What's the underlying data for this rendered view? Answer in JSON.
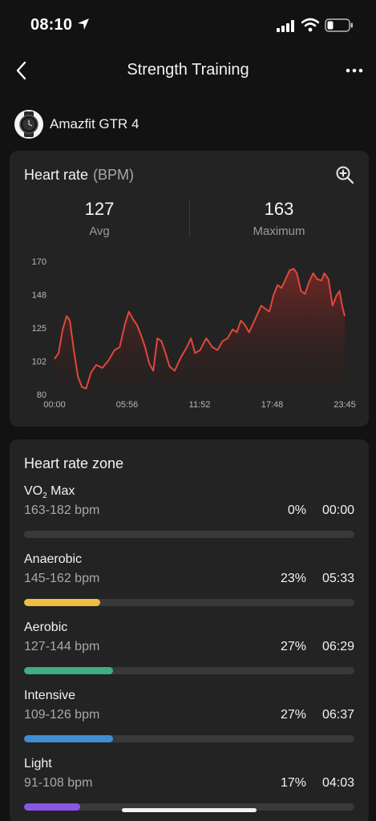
{
  "status_bar": {
    "time": "08:10"
  },
  "nav": {
    "title": "Strength Training"
  },
  "device": {
    "name": "Amazfit GTR 4"
  },
  "heart_rate": {
    "title": "Heart rate",
    "unit": "(BPM)",
    "avg_value": "127",
    "avg_label": "Avg",
    "max_value": "163",
    "max_label": "Maximum"
  },
  "chart_data": {
    "type": "area",
    "title": "",
    "xlabel": "",
    "ylabel": "",
    "ylim": [
      80,
      170
    ],
    "y_ticks": [
      "170",
      "148",
      "125",
      "102",
      "80"
    ],
    "x_ticks": [
      "00:00",
      "05:56",
      "11:52",
      "17:48",
      "23:45"
    ],
    "x_range_seconds": [
      0,
      1425
    ],
    "series": [
      {
        "color": "#e0473c",
        "points": [
          [
            0,
            104
          ],
          [
            20,
            108
          ],
          [
            40,
            124
          ],
          [
            60,
            133
          ],
          [
            75,
            130
          ],
          [
            95,
            110
          ],
          [
            115,
            92
          ],
          [
            135,
            85
          ],
          [
            155,
            84
          ],
          [
            180,
            95
          ],
          [
            205,
            100
          ],
          [
            235,
            98
          ],
          [
            265,
            103
          ],
          [
            295,
            110
          ],
          [
            320,
            112
          ],
          [
            345,
            127
          ],
          [
            365,
            136
          ],
          [
            385,
            131
          ],
          [
            405,
            127
          ],
          [
            425,
            120
          ],
          [
            445,
            112
          ],
          [
            465,
            101
          ],
          [
            485,
            96
          ],
          [
            505,
            118
          ],
          [
            525,
            116
          ],
          [
            545,
            108
          ],
          [
            565,
            99
          ],
          [
            590,
            96
          ],
          [
            620,
            105
          ],
          [
            650,
            112
          ],
          [
            670,
            118
          ],
          [
            690,
            108
          ],
          [
            715,
            110
          ],
          [
            745,
            118
          ],
          [
            775,
            112
          ],
          [
            800,
            110
          ],
          [
            825,
            116
          ],
          [
            850,
            118
          ],
          [
            875,
            124
          ],
          [
            895,
            122
          ],
          [
            915,
            130
          ],
          [
            935,
            127
          ],
          [
            955,
            122
          ],
          [
            975,
            128
          ],
          [
            995,
            134
          ],
          [
            1015,
            140
          ],
          [
            1035,
            138
          ],
          [
            1055,
            136
          ],
          [
            1075,
            147
          ],
          [
            1095,
            154
          ],
          [
            1115,
            152
          ],
          [
            1135,
            158
          ],
          [
            1155,
            164
          ],
          [
            1175,
            165
          ],
          [
            1190,
            162
          ],
          [
            1210,
            150
          ],
          [
            1230,
            148
          ],
          [
            1250,
            156
          ],
          [
            1270,
            162
          ],
          [
            1290,
            158
          ],
          [
            1310,
            157
          ],
          [
            1325,
            162
          ],
          [
            1345,
            158
          ],
          [
            1365,
            140
          ],
          [
            1385,
            147
          ],
          [
            1400,
            150
          ],
          [
            1412,
            140
          ],
          [
            1425,
            133
          ]
        ]
      }
    ]
  },
  "zones": {
    "title": "Heart rate zone",
    "items": [
      {
        "name_main": "VO",
        "name_sub": "2",
        "name_rest": " Max",
        "range": "163-182 bpm",
        "percent": "0%",
        "duration": "00:00",
        "fraction": 0.0,
        "color": "#f0c14b"
      },
      {
        "name_main": "Anaerobic",
        "range": "145-162 bpm",
        "percent": "23%",
        "duration": "05:33",
        "fraction": 0.23,
        "color": "#f0bd42"
      },
      {
        "name_main": "Aerobic",
        "range": "127-144 bpm",
        "percent": "27%",
        "duration": "06:29",
        "fraction": 0.27,
        "color": "#3fae82"
      },
      {
        "name_main": "Intensive",
        "range": "109-126 bpm",
        "percent": "27%",
        "duration": "06:37",
        "fraction": 0.27,
        "color": "#3f8fd0"
      },
      {
        "name_main": "Light",
        "range": "91-108 bpm",
        "percent": "17%",
        "duration": "04:03",
        "fraction": 0.17,
        "color": "#8a56e6"
      }
    ]
  }
}
